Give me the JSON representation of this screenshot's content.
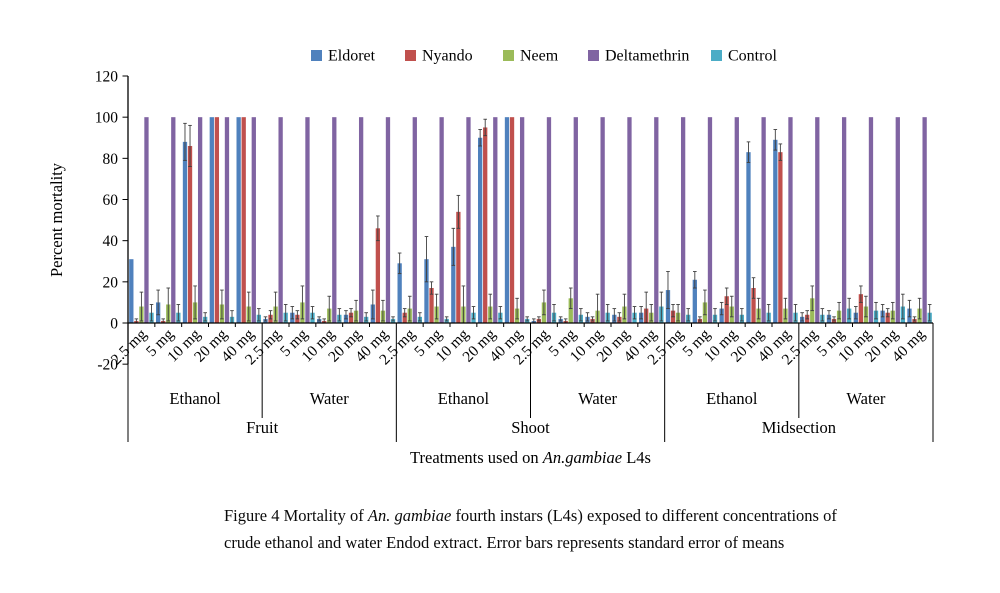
{
  "figure": {
    "caption": {
      "line1_pre": "Figure 4 Mortality of ",
      "line1_italic": "An. gambiae",
      "line1_post": " fourth instars (L4s) exposed to different concentrations of",
      "line2": "crude ethanol and water Endod extract. Error bars represents standard error of means"
    }
  },
  "chart_data": {
    "type": "bar",
    "ylabel": "Percent mortality",
    "xlabel_pre": "Treatments used on ",
    "xlabel_italic": "An.gambiae",
    "xlabel_post": " L4s",
    "ylim": [
      -20,
      120
    ],
    "ytick_step": 20,
    "grid": false,
    "legend_position": "top",
    "concentrations": [
      "2.5 mg",
      "5 mg",
      "10 mg",
      "20 mg",
      "40 mg"
    ],
    "solvents": [
      "Ethanol",
      "Water"
    ],
    "parts": [
      "Fruit",
      "Shoot",
      "Midsection"
    ],
    "group_order_note": "values arrays run Fruit-Ethanol 2.5..40, Fruit-Water 2.5..40, Shoot-Ethanol, Shoot-Water, Midsection-Ethanol, Midsection-Water",
    "series": [
      {
        "name": "Eldoret",
        "color": "#4F81BD",
        "values": [
          31,
          10,
          88,
          100,
          100,
          2,
          5,
          2,
          4,
          9,
          29,
          31,
          37,
          90,
          100,
          1,
          2,
          3,
          4,
          5,
          16,
          21,
          7,
          83,
          89,
          3,
          4,
          5,
          6,
          7
        ],
        "errors": [
          0,
          6,
          9,
          0,
          0,
          1,
          3,
          1,
          2,
          7,
          5,
          11,
          9,
          4,
          0,
          1,
          1,
          2,
          3,
          3,
          9,
          4,
          3,
          5,
          5,
          2,
          2,
          3,
          3,
          4
        ]
      },
      {
        "name": "Nyando",
        "color": "#C0504D",
        "values": [
          1,
          1,
          86,
          100,
          100,
          4,
          4,
          1,
          5,
          46,
          5,
          17,
          54,
          95,
          100,
          2,
          1,
          2,
          3,
          7,
          6,
          2,
          13,
          17,
          83,
          4,
          2,
          14,
          5,
          2
        ],
        "errors": [
          1,
          1,
          10,
          0,
          0,
          2,
          2,
          1,
          2,
          6,
          2,
          3,
          8,
          4,
          0,
          1,
          1,
          1,
          2,
          8,
          3,
          1,
          4,
          5,
          4,
          2,
          1,
          4,
          2,
          1
        ]
      },
      {
        "name": "Neem",
        "color": "#9BBB59",
        "values": [
          8,
          9,
          10,
          9,
          8,
          8,
          10,
          7,
          6,
          6,
          7,
          8,
          8,
          8,
          7,
          10,
          12,
          6,
          8,
          5,
          5,
          10,
          8,
          7,
          7,
          12,
          6,
          8,
          6,
          7
        ],
        "errors": [
          7,
          8,
          8,
          7,
          7,
          7,
          8,
          6,
          5,
          5,
          6,
          6,
          10,
          6,
          5,
          6,
          5,
          8,
          6,
          4,
          4,
          6,
          5,
          5,
          5,
          6,
          4,
          5,
          4,
          5
        ]
      },
      {
        "name": "Deltamethrin",
        "color": "#8064A2",
        "values": [
          100,
          100,
          100,
          100,
          100,
          100,
          100,
          100,
          100,
          100,
          100,
          100,
          100,
          100,
          100,
          100,
          100,
          100,
          100,
          100,
          100,
          100,
          100,
          100,
          100,
          100,
          100,
          100,
          100,
          100
        ],
        "errors": [
          0,
          0,
          0,
          0,
          0,
          0,
          0,
          0,
          0,
          0,
          0,
          0,
          0,
          0,
          0,
          0,
          0,
          0,
          0,
          0,
          0,
          0,
          0,
          0,
          0,
          0,
          0,
          0,
          0,
          0
        ]
      },
      {
        "name": "Control",
        "color": "#4BACC6",
        "values": [
          5,
          5,
          3,
          3,
          4,
          5,
          5,
          4,
          3,
          2,
          3,
          2,
          5,
          5,
          2,
          5,
          4,
          5,
          5,
          8,
          4,
          4,
          4,
          5,
          5,
          4,
          7,
          6,
          8,
          5
        ],
        "errors": [
          4,
          4,
          2,
          3,
          3,
          4,
          3,
          3,
          2,
          1,
          2,
          1,
          3,
          3,
          1,
          4,
          3,
          4,
          3,
          7,
          3,
          3,
          3,
          4,
          4,
          3,
          5,
          4,
          6,
          4
        ]
      }
    ]
  }
}
